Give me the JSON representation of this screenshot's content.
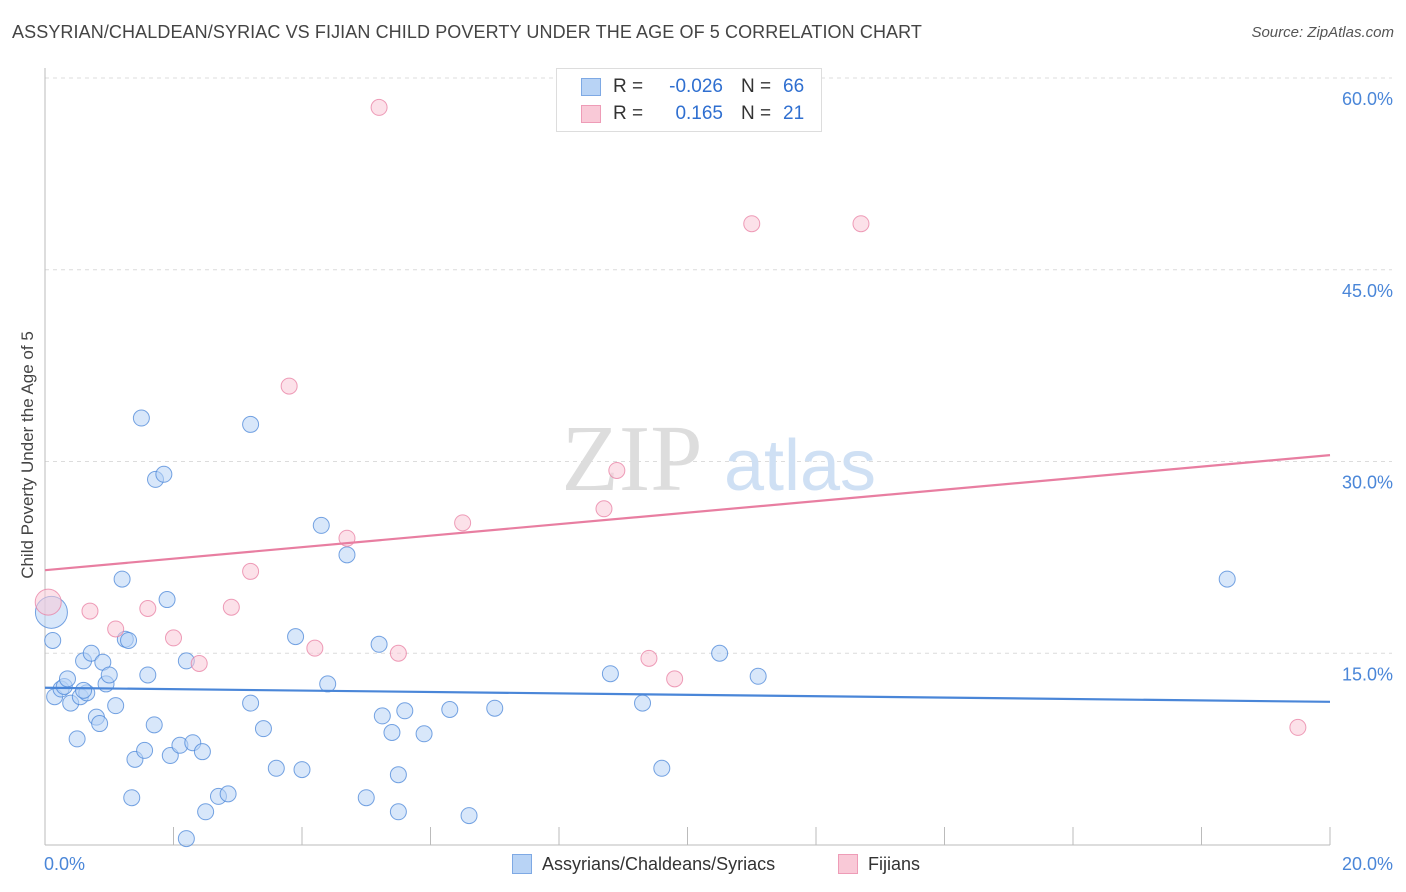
{
  "title": "ASSYRIAN/CHALDEAN/SYRIAC VS FIJIAN CHILD POVERTY UNDER THE AGE OF 5 CORRELATION CHART",
  "source": "Source: ZipAtlas.com",
  "watermark": {
    "zip": "ZIP",
    "atlas": "atlas"
  },
  "stats": [
    {
      "r_label": "R =",
      "r_value": "-0.026",
      "n_label": "N =",
      "n_value": "66",
      "color": "#4a86d8"
    },
    {
      "r_label": "R =",
      "r_value": "0.165",
      "n_label": "N =",
      "n_value": "21",
      "color": "#e87ea1"
    }
  ],
  "legend": [
    {
      "label": "Assyrians/Chaldeans/Syriacs",
      "color": "#b8d3f5"
    },
    {
      "label": "Fijians",
      "color": "#f9c9d7"
    }
  ],
  "chart_data": {
    "type": "scatter",
    "ylabel": "Child Poverty Under the Age of 5",
    "xlim": [
      0,
      20
    ],
    "ylim": [
      0,
      60
    ],
    "x_ticks": [
      "0.0%",
      "20.0%"
    ],
    "y_ticks": [
      {
        "value": 15,
        "label": "15.0%"
      },
      {
        "value": 30,
        "label": "30.0%"
      },
      {
        "value": 45,
        "label": "45.0%"
      },
      {
        "value": 60,
        "label": "60.0%"
      }
    ],
    "grid": true,
    "series": [
      {
        "name": "Assyrians/Chaldeans/Syriacs",
        "color": "#4a86d8",
        "fill": "#b8d3f5",
        "trend": [
          [
            0,
            12.3
          ],
          [
            20,
            11.2
          ]
        ],
        "points": [
          [
            0.1,
            18.2
          ],
          [
            0.12,
            16.0
          ],
          [
            0.15,
            11.6
          ],
          [
            0.25,
            12.2
          ],
          [
            0.3,
            12.4
          ],
          [
            0.35,
            13.0
          ],
          [
            0.4,
            11.1
          ],
          [
            0.5,
            8.3
          ],
          [
            0.55,
            11.6
          ],
          [
            0.6,
            14.4
          ],
          [
            0.65,
            11.9
          ],
          [
            0.72,
            15.0
          ],
          [
            0.8,
            10.0
          ],
          [
            0.85,
            9.5
          ],
          [
            0.9,
            14.3
          ],
          [
            0.95,
            12.6
          ],
          [
            1.0,
            13.3
          ],
          [
            1.1,
            10.9
          ],
          [
            1.2,
            20.8
          ],
          [
            1.25,
            16.1
          ],
          [
            1.3,
            16.0
          ],
          [
            1.35,
            3.7
          ],
          [
            1.4,
            6.7
          ],
          [
            1.5,
            33.4
          ],
          [
            1.55,
            7.4
          ],
          [
            1.6,
            13.3
          ],
          [
            1.7,
            9.4
          ],
          [
            1.72,
            28.6
          ],
          [
            1.85,
            29.0
          ],
          [
            1.9,
            19.2
          ],
          [
            1.95,
            7.0
          ],
          [
            2.1,
            7.8
          ],
          [
            2.2,
            14.4
          ],
          [
            2.3,
            8.0
          ],
          [
            2.45,
            7.3
          ],
          [
            2.5,
            2.6
          ],
          [
            2.7,
            3.8
          ],
          [
            2.85,
            4.0
          ],
          [
            3.2,
            11.1
          ],
          [
            3.2,
            32.9
          ],
          [
            3.4,
            9.1
          ],
          [
            3.6,
            6.0
          ],
          [
            3.9,
            16.3
          ],
          [
            4.0,
            5.9
          ],
          [
            4.3,
            25.0
          ],
          [
            4.4,
            12.6
          ],
          [
            4.7,
            22.7
          ],
          [
            5.0,
            3.7
          ],
          [
            5.2,
            15.7
          ],
          [
            5.25,
            10.1
          ],
          [
            5.4,
            8.8
          ],
          [
            5.5,
            5.5
          ],
          [
            5.6,
            10.5
          ],
          [
            5.9,
            8.7
          ],
          [
            6.3,
            10.6
          ],
          [
            6.6,
            2.3
          ],
          [
            7.0,
            10.7
          ],
          [
            8.8,
            13.4
          ],
          [
            9.3,
            11.1
          ],
          [
            9.6,
            6.0
          ],
          [
            10.5,
            15.0
          ],
          [
            11.1,
            13.2
          ],
          [
            18.4,
            20.8
          ],
          [
            5.5,
            2.6
          ],
          [
            2.2,
            0.5
          ],
          [
            0.6,
            12.1
          ]
        ]
      },
      {
        "name": "Fijians",
        "color": "#e87ea1",
        "fill": "#f9c9d7",
        "trend": [
          [
            0,
            21.5
          ],
          [
            20,
            30.5
          ]
        ],
        "points": [
          [
            0.05,
            19.0
          ],
          [
            0.7,
            18.3
          ],
          [
            1.1,
            16.9
          ],
          [
            1.6,
            18.5
          ],
          [
            2.0,
            16.2
          ],
          [
            2.4,
            14.2
          ],
          [
            2.9,
            18.6
          ],
          [
            3.2,
            21.4
          ],
          [
            3.8,
            35.9
          ],
          [
            4.2,
            15.4
          ],
          [
            4.7,
            24.0
          ],
          [
            5.2,
            57.7
          ],
          [
            5.5,
            15.0
          ],
          [
            6.5,
            25.2
          ],
          [
            8.7,
            26.3
          ],
          [
            8.9,
            29.3
          ],
          [
            9.4,
            14.6
          ],
          [
            9.8,
            13.0
          ],
          [
            11.0,
            48.6
          ],
          [
            12.7,
            48.6
          ],
          [
            19.5,
            9.2
          ]
        ]
      }
    ]
  }
}
